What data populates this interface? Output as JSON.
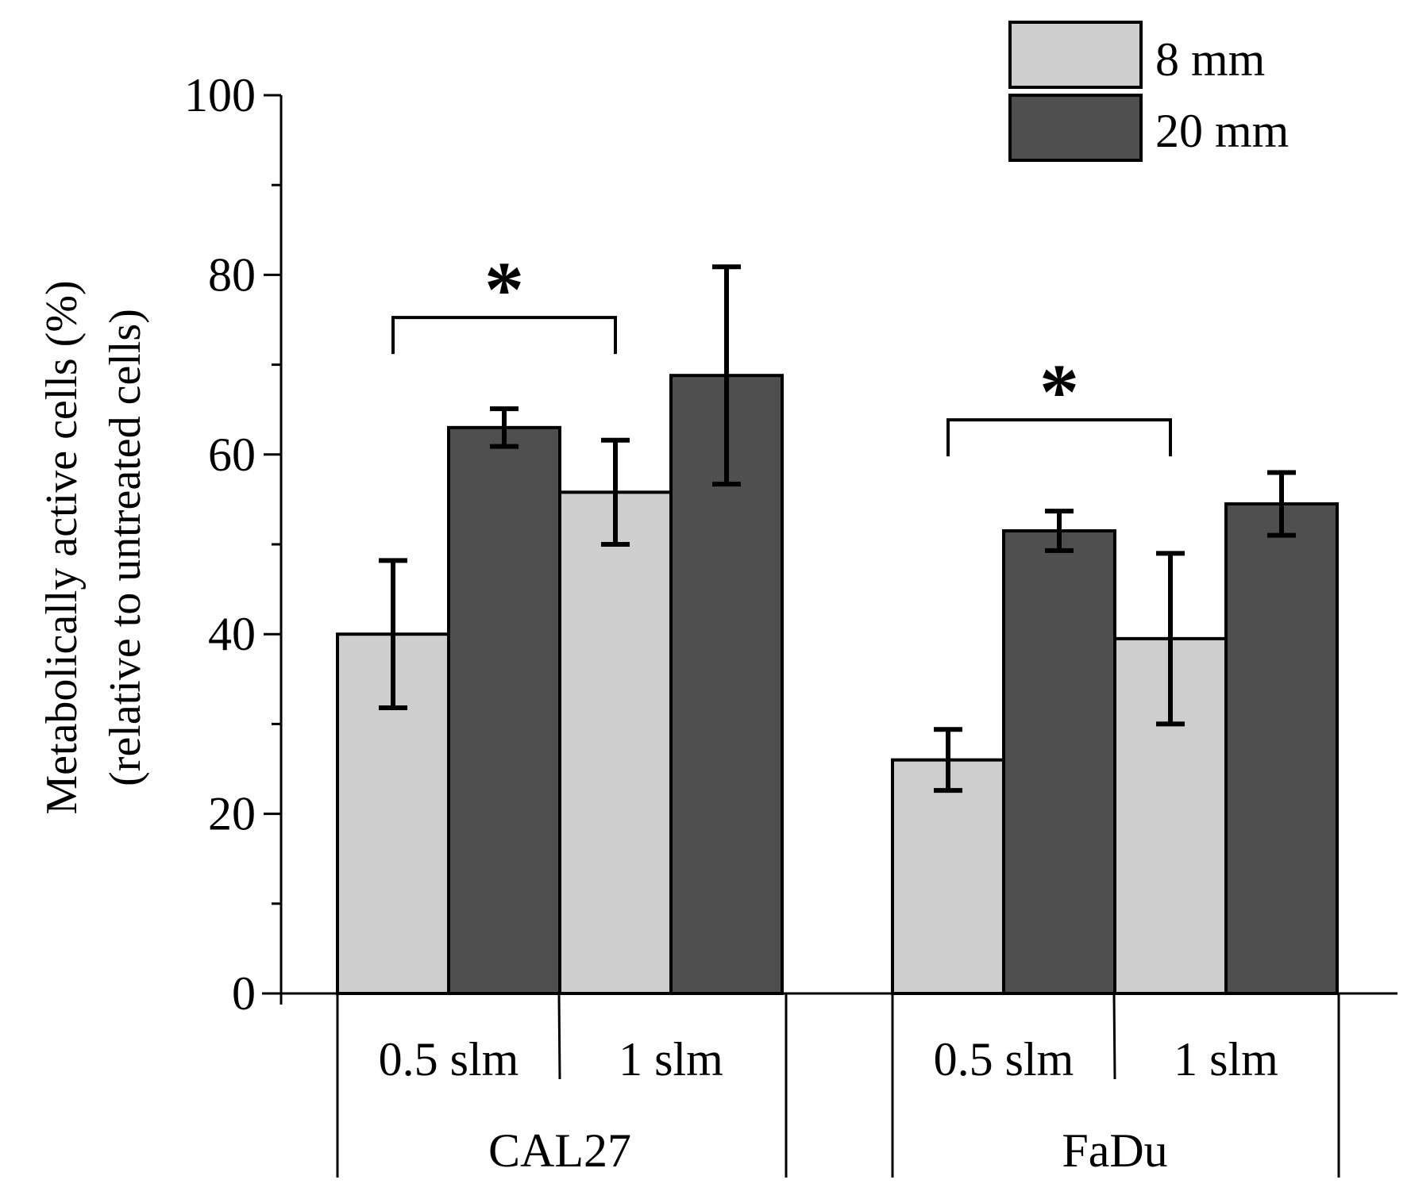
{
  "chart_data": {
    "type": "bar",
    "ylabel_line1": "Metabolically active cells (%)",
    "ylabel_line2": "(relative to untreated cells)",
    "ylim": [
      0,
      100
    ],
    "yticks": [
      "0",
      "20",
      "40",
      "60",
      "80",
      "100"
    ],
    "groups": [
      {
        "name": "CAL27",
        "subgroups": [
          {
            "label": "0.5 slm",
            "values": [
              40,
              63
            ],
            "errors": [
              8.2,
              2.1
            ]
          },
          {
            "label": "1 slm",
            "values": [
              55.8,
              68.8
            ],
            "errors": [
              5.8,
              12.1
            ]
          }
        ],
        "significance": {
          "label": "*",
          "between": "8 mm 0.5 slm vs 8 mm 1 slm"
        }
      },
      {
        "name": "FaDu",
        "subgroups": [
          {
            "label": "0.5 slm",
            "values": [
              26,
              51.5
            ],
            "errors": [
              3.4,
              2.2
            ]
          },
          {
            "label": "1 slm",
            "values": [
              39.5,
              54.5
            ],
            "errors": [
              9.5,
              3.5
            ]
          }
        ],
        "significance": {
          "label": "*",
          "between": "8 mm 0.5 slm vs 8 mm 1 slm"
        }
      }
    ],
    "series": [
      {
        "name": "8 mm",
        "color": "#cecece"
      },
      {
        "name": "20 mm",
        "color": "#4f4f4f"
      }
    ],
    "legend_position": "top-right"
  }
}
